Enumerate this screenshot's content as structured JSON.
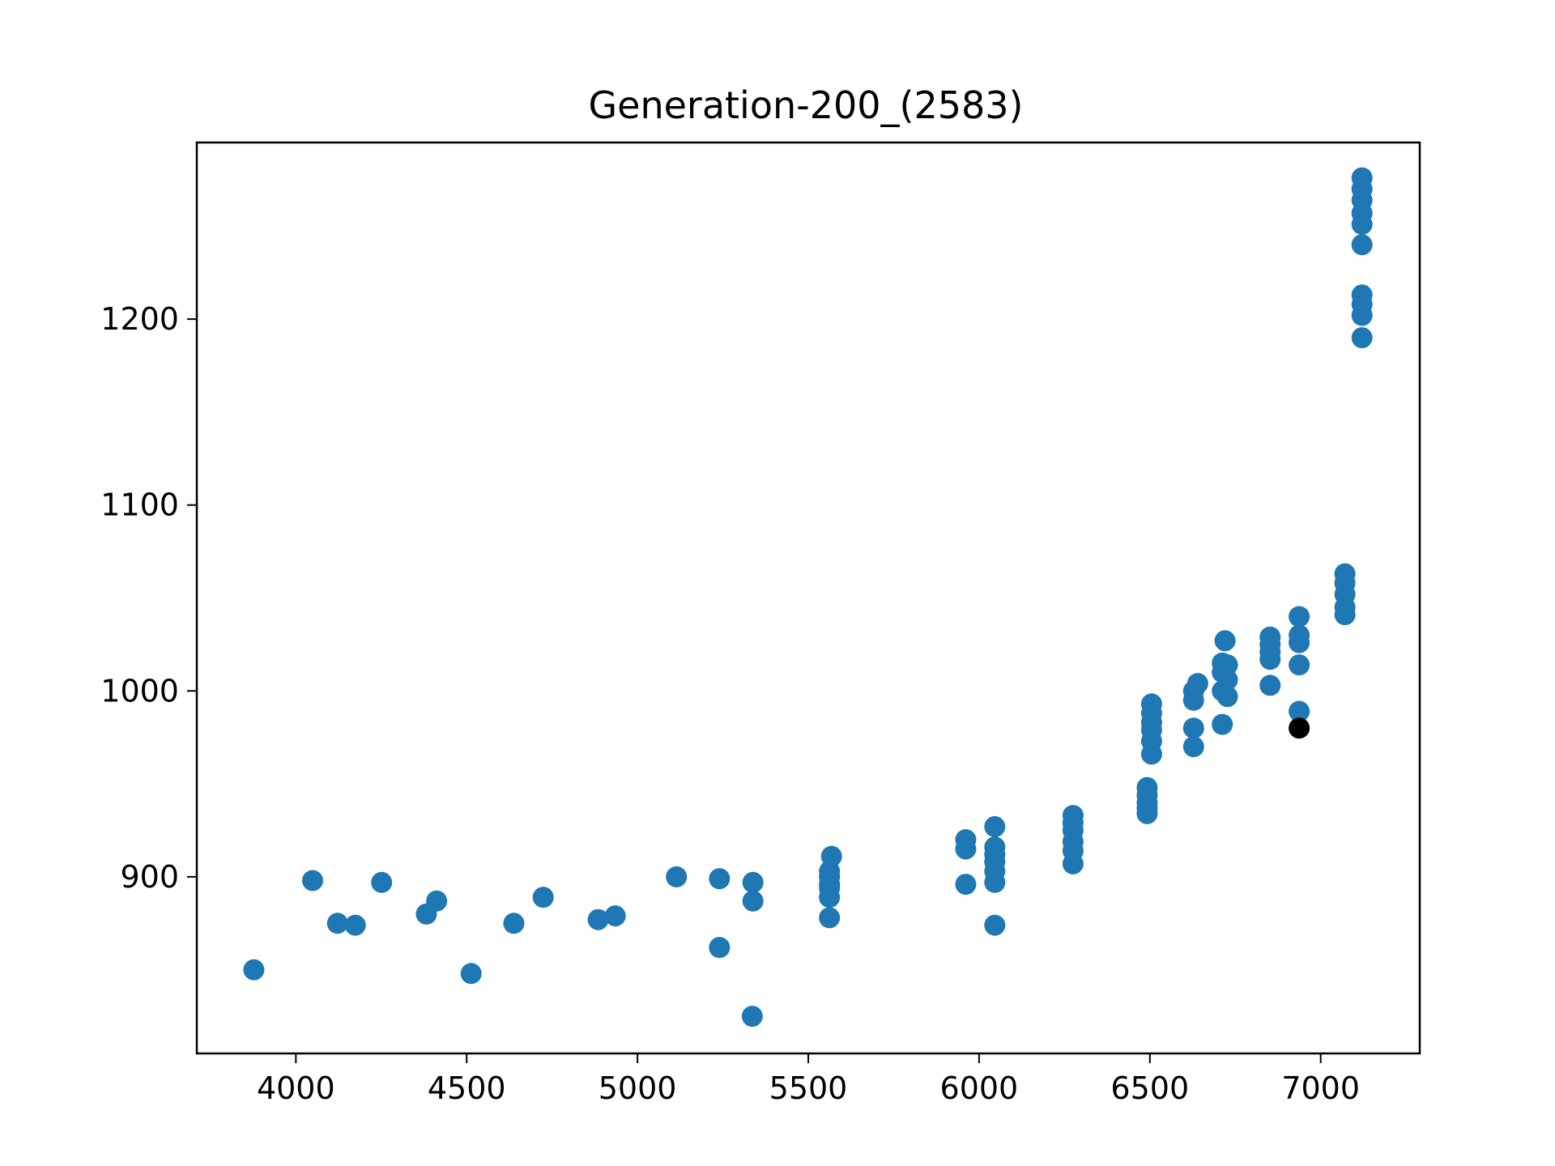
{
  "chart_data": {
    "type": "scatter",
    "title": "Generation-200_(2583)",
    "xlabel": "",
    "ylabel": "",
    "xlim": [
      3710,
      7290
    ],
    "ylim": [
      805,
      1295
    ],
    "xticks": [
      4000,
      4500,
      5000,
      5500,
      6000,
      6500,
      7000
    ],
    "yticks": [
      900,
      1000,
      1100,
      1200
    ],
    "grid": false,
    "colors": {
      "series": "#1f77b4",
      "highlight": "#000000"
    },
    "series": [
      {
        "points": [
          [
            3877,
            850
          ],
          [
            4049,
            898
          ],
          [
            4122,
            875
          ],
          [
            4174,
            874
          ],
          [
            4251,
            897
          ],
          [
            4382,
            880
          ],
          [
            4412,
            887
          ],
          [
            4513,
            848
          ],
          [
            4638,
            875
          ],
          [
            4724,
            889
          ],
          [
            4885,
            877
          ],
          [
            4935,
            879
          ],
          [
            5114,
            900
          ],
          [
            5240,
            899
          ],
          [
            5240,
            862
          ],
          [
            5338,
            897
          ],
          [
            5338,
            887
          ],
          [
            5336,
            825
          ],
          [
            5568,
            911
          ],
          [
            5562,
            903
          ],
          [
            5562,
            900
          ],
          [
            5562,
            896
          ],
          [
            5562,
            894
          ],
          [
            5562,
            889
          ],
          [
            5562,
            878
          ],
          [
            5961,
            920
          ],
          [
            5961,
            915
          ],
          [
            5961,
            896
          ],
          [
            6046,
            927
          ],
          [
            6046,
            916
          ],
          [
            6046,
            912
          ],
          [
            6046,
            908
          ],
          [
            6046,
            903
          ],
          [
            6046,
            897
          ],
          [
            6046,
            874
          ],
          [
            6275,
            933
          ],
          [
            6275,
            929
          ],
          [
            6275,
            925
          ],
          [
            6275,
            919
          ],
          [
            6275,
            914
          ],
          [
            6275,
            907
          ],
          [
            6492,
            948
          ],
          [
            6492,
            944
          ],
          [
            6492,
            940
          ],
          [
            6492,
            937
          ],
          [
            6492,
            934
          ],
          [
            6505,
            993
          ],
          [
            6505,
            988
          ],
          [
            6505,
            983
          ],
          [
            6505,
            979
          ],
          [
            6505,
            973
          ],
          [
            6505,
            966
          ],
          [
            6628,
            1000
          ],
          [
            6628,
            995
          ],
          [
            6628,
            980
          ],
          [
            6628,
            970
          ],
          [
            6640,
            1004
          ],
          [
            6712,
            1015
          ],
          [
            6712,
            1010
          ],
          [
            6712,
            1000
          ],
          [
            6712,
            982
          ],
          [
            6720,
            1027
          ],
          [
            6727,
            1014
          ],
          [
            6727,
            1006
          ],
          [
            6727,
            997
          ],
          [
            6852,
            1029
          ],
          [
            6852,
            1025
          ],
          [
            6852,
            1021
          ],
          [
            6852,
            1017
          ],
          [
            6852,
            1003
          ],
          [
            6937,
            1040
          ],
          [
            6937,
            1030
          ],
          [
            6937,
            1026
          ],
          [
            6937,
            1014
          ],
          [
            6937,
            989
          ],
          [
            7071,
            1063
          ],
          [
            7071,
            1058
          ],
          [
            7071,
            1052
          ],
          [
            7071,
            1045
          ],
          [
            7071,
            1041
          ],
          [
            7121,
            1276
          ],
          [
            7121,
            1270
          ],
          [
            7121,
            1264
          ],
          [
            7121,
            1257
          ],
          [
            7121,
            1251
          ],
          [
            7121,
            1240
          ],
          [
            7121,
            1213
          ],
          [
            7121,
            1208
          ],
          [
            7121,
            1202
          ],
          [
            7121,
            1190
          ]
        ]
      },
      {
        "points": [
          [
            6937,
            980
          ]
        ]
      }
    ]
  }
}
